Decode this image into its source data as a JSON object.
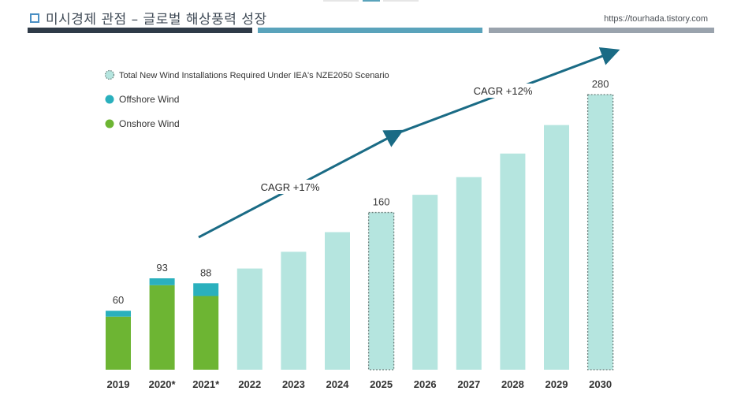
{
  "header": {
    "title": "미시경제 관점 – 글로벌 해상풍력 성장",
    "url": "https://tourhada.tistory.com"
  },
  "colors": {
    "onshore": "#6db533",
    "offshore": "#2ab0bd",
    "projected": "#b5e5df",
    "arrow": "#1a6b85",
    "text": "#3a3a3a"
  },
  "chart_data": {
    "type": "bar",
    "categories": [
      "2019",
      "2020*",
      "2021*",
      "2022",
      "2023",
      "2024",
      "2025",
      "2026",
      "2027",
      "2028",
      "2029",
      "2030"
    ],
    "series": [
      {
        "name": "Onshore Wind",
        "values": [
          54,
          86,
          75,
          null,
          null,
          null,
          null,
          null,
          null,
          null,
          null,
          null
        ]
      },
      {
        "name": "Offshore Wind",
        "values": [
          6,
          7,
          13,
          null,
          null,
          null,
          null,
          null,
          null,
          null,
          null,
          null
        ]
      },
      {
        "name": "Total New Wind Installations Required Under IEA's NZE2050 Scenario",
        "values": [
          null,
          null,
          null,
          103,
          120,
          140,
          160,
          178,
          196,
          220,
          249,
          280
        ]
      }
    ],
    "data_labels": [
      {
        "category": "2019",
        "text": "60"
      },
      {
        "category": "2020*",
        "text": "93"
      },
      {
        "category": "2021*",
        "text": "88"
      },
      {
        "category": "2025",
        "text": "160"
      },
      {
        "category": "2030",
        "text": "280"
      }
    ],
    "highlighted_categories": [
      "2025",
      "2030"
    ],
    "annotations": [
      {
        "text": "CAGR +17%",
        "from": "2021*",
        "to": "2025"
      },
      {
        "text": "CAGR +12%",
        "from": "2025",
        "to": "2030"
      }
    ],
    "legend": [
      {
        "label": "Total New Wind Installations Required Under IEA's NZE2050 Scenario",
        "style": "dotted-light"
      },
      {
        "label": "Offshore Wind",
        "style": "teal"
      },
      {
        "label": "Onshore Wind",
        "style": "green"
      }
    ],
    "legend_position": "top-left",
    "ylim": [
      0,
      300
    ],
    "title": "",
    "xlabel": "",
    "ylabel": ""
  }
}
